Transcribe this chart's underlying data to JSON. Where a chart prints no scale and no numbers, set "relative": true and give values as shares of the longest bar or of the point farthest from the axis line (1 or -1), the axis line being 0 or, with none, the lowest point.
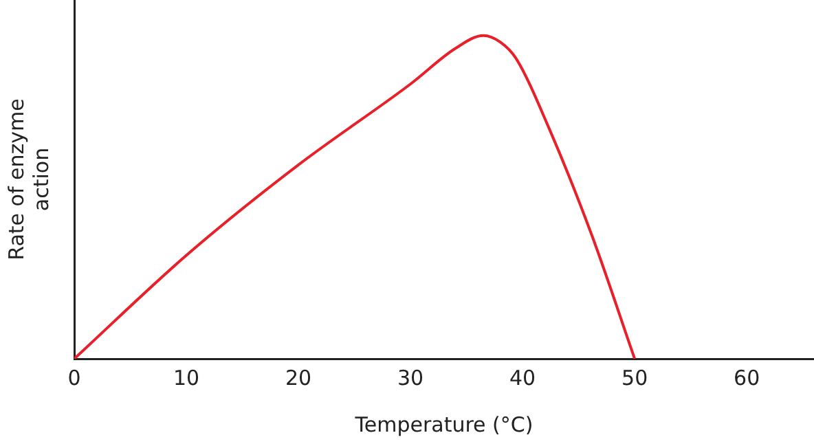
{
  "chart_data": {
    "type": "line",
    "xlabel": "Temperature (°C)",
    "ylabel": "Rate of enzyme action",
    "relative": true,
    "xlim": [
      0,
      66
    ],
    "xticks": [
      0,
      10,
      20,
      30,
      40,
      50,
      60
    ],
    "grid": false,
    "legend": false,
    "marker": "none",
    "series": [
      {
        "color": "#e8202a",
        "x": [
          0,
          10,
          20,
          30,
          34,
          36.5,
          38,
          39.4,
          42.4,
          46.2,
          50
        ],
        "values": [
          0,
          0.32,
          0.6,
          0.85,
          0.96,
          1,
          0.98,
          0.93,
          0.71,
          0.38,
          0
        ]
      }
    ]
  }
}
